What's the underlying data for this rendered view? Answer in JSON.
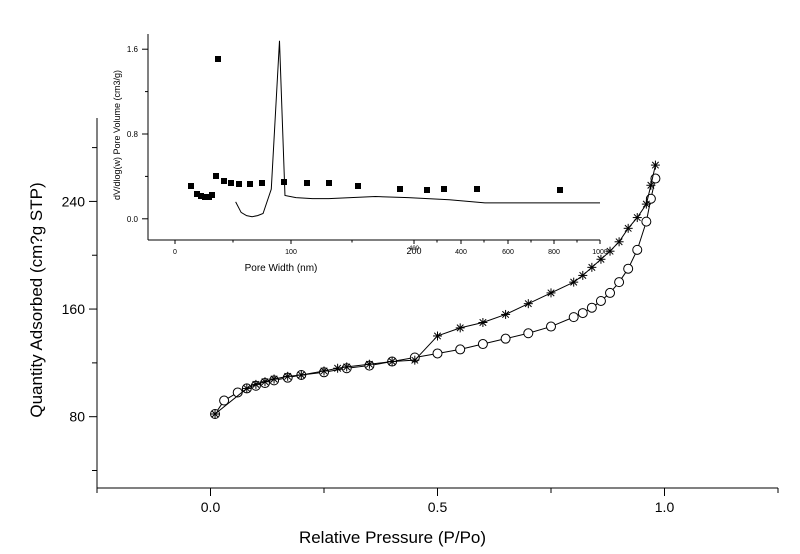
{
  "chart_data": [
    {
      "type": "line",
      "xlabel": "Relative Pressure (P/Po)",
      "ylabel": "Quantity Adsorbed (cm?g STP)",
      "xlim": [
        -0.25,
        1.25
      ],
      "ylim": [
        27,
        302
      ],
      "x_ticks": [
        0.0,
        0.5,
        1.0
      ],
      "x_tick_labels": [
        "0.0",
        "0.5",
        "1.0"
      ],
      "y_ticks": [
        80,
        160,
        240
      ],
      "y_tick_labels": [
        "80",
        "160",
        "240"
      ],
      "grid": false,
      "series": [
        {
          "marker": "circle",
          "x": [
            0.01,
            0.03,
            0.06,
            0.08,
            0.1,
            0.12,
            0.14,
            0.17,
            0.2,
            0.25,
            0.3,
            0.35,
            0.4,
            0.45,
            0.5,
            0.55,
            0.6,
            0.65,
            0.7,
            0.75,
            0.8,
            0.82,
            0.84,
            0.86,
            0.88,
            0.9,
            0.92,
            0.94,
            0.96,
            0.97,
            0.98
          ],
          "y": [
            82,
            92,
            98,
            101,
            103,
            105,
            107,
            109,
            111,
            113,
            116,
            118,
            121,
            124,
            127,
            130,
            134,
            138,
            142,
            147,
            154,
            157,
            161,
            166,
            172,
            180,
            190,
            204,
            225,
            242,
            257
          ]
        },
        {
          "marker": "star",
          "x": [
            0.98,
            0.97,
            0.96,
            0.94,
            0.92,
            0.9,
            0.88,
            0.86,
            0.84,
            0.82,
            0.8,
            0.75,
            0.7,
            0.65,
            0.6,
            0.55,
            0.5,
            0.45,
            0.4,
            0.35,
            0.3,
            0.28,
            0.25,
            0.2,
            0.17,
            0.14,
            0.12,
            0.1,
            0.08,
            0.01
          ],
          "y": [
            267,
            252,
            238,
            228,
            220,
            210,
            203,
            197,
            191,
            185,
            180,
            172,
            164,
            156,
            150,
            146,
            140,
            122,
            121,
            119,
            117,
            116,
            114,
            111,
            110,
            108,
            106,
            104,
            101,
            82
          ]
        }
      ]
    },
    {
      "type": "line",
      "xlabel": "Pore Width (nm)",
      "ylabel": "dV/dlog(w) Pore Volume (cm3/g)",
      "xlim": [
        -20,
        145
      ],
      "ylim": [
        -0.2,
        1.8
      ],
      "y_ticks": [
        0.0,
        0.8,
        1.6
      ],
      "y_tick_labels": [
        "0.0",
        "0.8",
        "1.6"
      ],
      "x_ticks": [
        0,
        100,
        200,
        400,
        600,
        800,
        1000
      ],
      "x_tick_labels": [
        "0",
        "100",
        "200",
        "400",
        "600",
        "800",
        "1000"
      ],
      "series": [
        {
          "marker": "square",
          "x": [
            12,
            14,
            16,
            18,
            20,
            22,
            25,
            28,
            30,
            34,
            40,
            46,
            54,
            63,
            75,
            90,
            103
          ],
          "y": [
            0.16,
            0.06,
            0.03,
            0.02,
            0.03,
            0.05,
            0.28,
            1.68,
            0.22,
            0.2,
            0.19,
            0.19,
            0.2,
            0.21,
            0.2,
            0.18,
            0.15
          ]
        }
      ]
    }
  ]
}
